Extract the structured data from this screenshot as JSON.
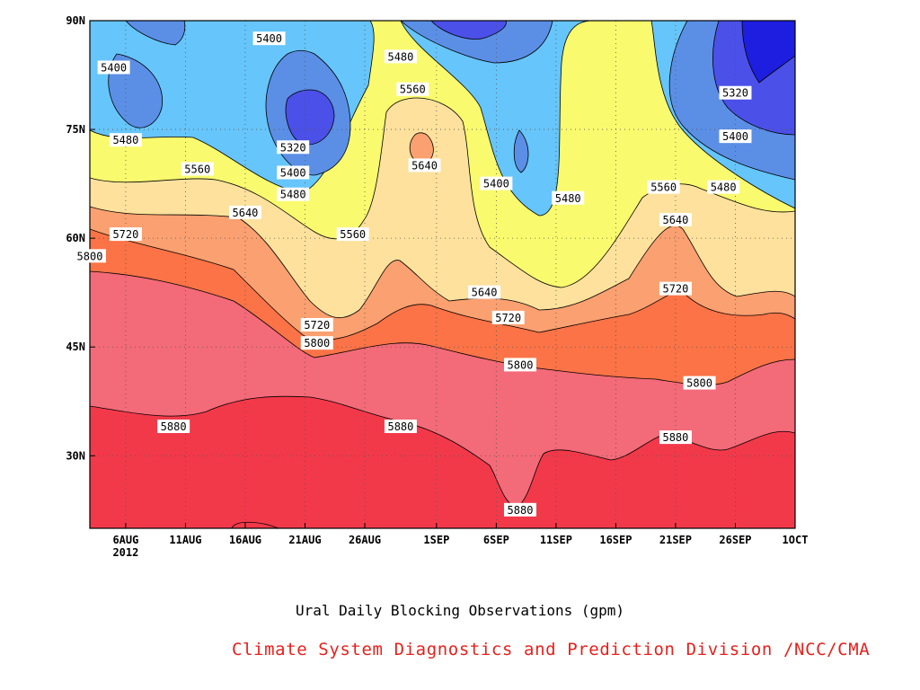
{
  "chart_data": {
    "type": "contour",
    "title": "Ural Daily Blocking Observations (gpm)",
    "credit": "Climate System Diagnostics and Prediction Division /NCC/CMA",
    "x_ticks": [
      "6AUG",
      "11AUG",
      "16AUG",
      "21AUG",
      "26AUG",
      "1SEP",
      "6SEP",
      "11SEP",
      "16SEP",
      "21SEP",
      "26SEP",
      "1OCT"
    ],
    "x_year": "2012",
    "y_ticks": [
      "30N",
      "45N",
      "60N",
      "75N",
      "90N"
    ],
    "x_range": [
      "2012-08-03",
      "2012-10-01"
    ],
    "y_range_lat": [
      20,
      90
    ],
    "levels": [
      5320,
      5400,
      5480,
      5560,
      5640,
      5720,
      5800,
      5880
    ],
    "level_colors": [
      "#1e1ee0",
      "#4b50e8",
      "#5b8fe6",
      "#66c5fa",
      "#fafa6e",
      "#fde19c",
      "#fba070",
      "#fb7346",
      "#f36a78",
      "#f2394a"
    ],
    "contour_labels": [
      {
        "value": "5400",
        "date": "2012-08-05",
        "lat": 83.5
      },
      {
        "value": "5400",
        "date": "2012-08-18",
        "lat": 87.5
      },
      {
        "value": "5480",
        "date": "2012-08-29",
        "lat": 85
      },
      {
        "value": "5560",
        "date": "2012-08-30",
        "lat": 80.5
      },
      {
        "value": "5320",
        "date": "2012-08-20",
        "lat": 72.5
      },
      {
        "value": "5400",
        "date": "2012-08-20",
        "lat": 69
      },
      {
        "value": "5480",
        "date": "2012-08-20",
        "lat": 66
      },
      {
        "value": "5640",
        "date": "2012-08-31",
        "lat": 70
      },
      {
        "value": "5400",
        "date": "2012-09-06",
        "lat": 67.5
      },
      {
        "value": "5480",
        "date": "2012-09-12",
        "lat": 65.5
      },
      {
        "value": "5560",
        "date": "2012-09-20",
        "lat": 67
      },
      {
        "value": "5480",
        "date": "2012-09-25",
        "lat": 67
      },
      {
        "value": "5320",
        "date": "2012-09-26",
        "lat": 80
      },
      {
        "value": "5400",
        "date": "2012-09-26",
        "lat": 74
      },
      {
        "value": "5480",
        "date": "2012-08-06",
        "lat": 73.5
      },
      {
        "value": "5560",
        "date": "2012-08-12",
        "lat": 69.5
      },
      {
        "value": "5640",
        "date": "2012-08-16",
        "lat": 63.5
      },
      {
        "value": "5720",
        "date": "2012-08-06",
        "lat": 60.5
      },
      {
        "value": "5800",
        "date": "2012-08-03",
        "lat": 57.5
      },
      {
        "value": "5560",
        "date": "2012-08-25",
        "lat": 60.5
      },
      {
        "value": "5640",
        "date": "2012-09-05",
        "lat": 52.5
      },
      {
        "value": "5720",
        "date": "2012-08-22",
        "lat": 48
      },
      {
        "value": "5720",
        "date": "2012-09-07",
        "lat": 49
      },
      {
        "value": "5640",
        "date": "2012-09-21",
        "lat": 62.5
      },
      {
        "value": "5720",
        "date": "2012-09-21",
        "lat": 53
      },
      {
        "value": "5800",
        "date": "2012-08-22",
        "lat": 45.5
      },
      {
        "value": "5800",
        "date": "2012-09-08",
        "lat": 42.5
      },
      {
        "value": "5800",
        "date": "2012-09-23",
        "lat": 40
      },
      {
        "value": "5880",
        "date": "2012-08-10",
        "lat": 34
      },
      {
        "value": "5880",
        "date": "2012-08-29",
        "lat": 34
      },
      {
        "value": "5880",
        "date": "2012-09-08",
        "lat": 22.5
      },
      {
        "value": "5880",
        "date": "2012-09-21",
        "lat": 32.5
      }
    ]
  }
}
